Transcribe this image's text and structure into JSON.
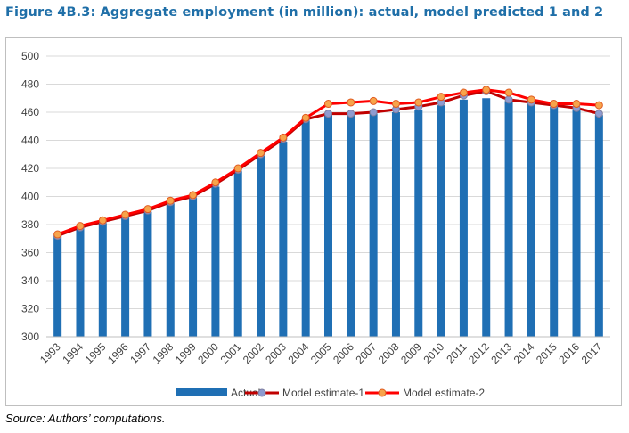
{
  "header": {
    "title": "Figure 4B.3: Aggregate employment (in million): actual, model predicted 1 and 2"
  },
  "footer": {
    "source": "Source: Authors’ computations."
  },
  "colors": {
    "title": "#1F6FA8",
    "actual_bar": "#1F6FB4",
    "model1_line": "#C00000",
    "model1_marker": "#8E9BD0",
    "model2_line": "#FF0000",
    "model2_marker": "#F7A44B",
    "grid": "#d9d9d9"
  },
  "chart_data": {
    "type": "bar",
    "categories": [
      "1993",
      "1994",
      "1995",
      "1996",
      "1997",
      "1998",
      "1999",
      "2000",
      "2001",
      "2002",
      "2003",
      "2004",
      "2005",
      "2006",
      "2007",
      "2008",
      "2009",
      "2010",
      "2011",
      "2012",
      "2013",
      "2014",
      "2015",
      "2016",
      "2017"
    ],
    "series": [
      {
        "name": "Actual",
        "type": "bar",
        "values": [
          372,
          378,
          381,
          385,
          389,
          395,
          399,
          407,
          418,
          429,
          439,
          454,
          459,
          458,
          459,
          460,
          462,
          465,
          469,
          470,
          468,
          466,
          464,
          462,
          458
        ]
      },
      {
        "name": "Model estimate-1",
        "type": "line",
        "values": [
          372,
          378,
          382,
          386,
          390,
          396,
          400,
          409,
          419,
          430,
          441,
          455,
          459,
          459,
          460,
          462,
          464,
          467,
          472,
          475,
          469,
          467,
          465,
          463,
          459
        ]
      },
      {
        "name": "Model estimate-2",
        "type": "line",
        "values": [
          373,
          379,
          383,
          387,
          391,
          397,
          401,
          410,
          420,
          431,
          442,
          456,
          466,
          467,
          468,
          466,
          467,
          471,
          474,
          476,
          474,
          469,
          466,
          466,
          465
        ]
      }
    ],
    "yticks": [
      "300",
      "320",
      "340",
      "360",
      "380",
      "400",
      "420",
      "440",
      "460",
      "480",
      "500"
    ],
    "ylim": [
      300,
      500
    ],
    "grid": true,
    "legend_position": "bottom",
    "title": "Figure 4B.3: Aggregate employment (in million): actual, model predicted 1 and 2",
    "xlabel": "",
    "ylabel": ""
  }
}
